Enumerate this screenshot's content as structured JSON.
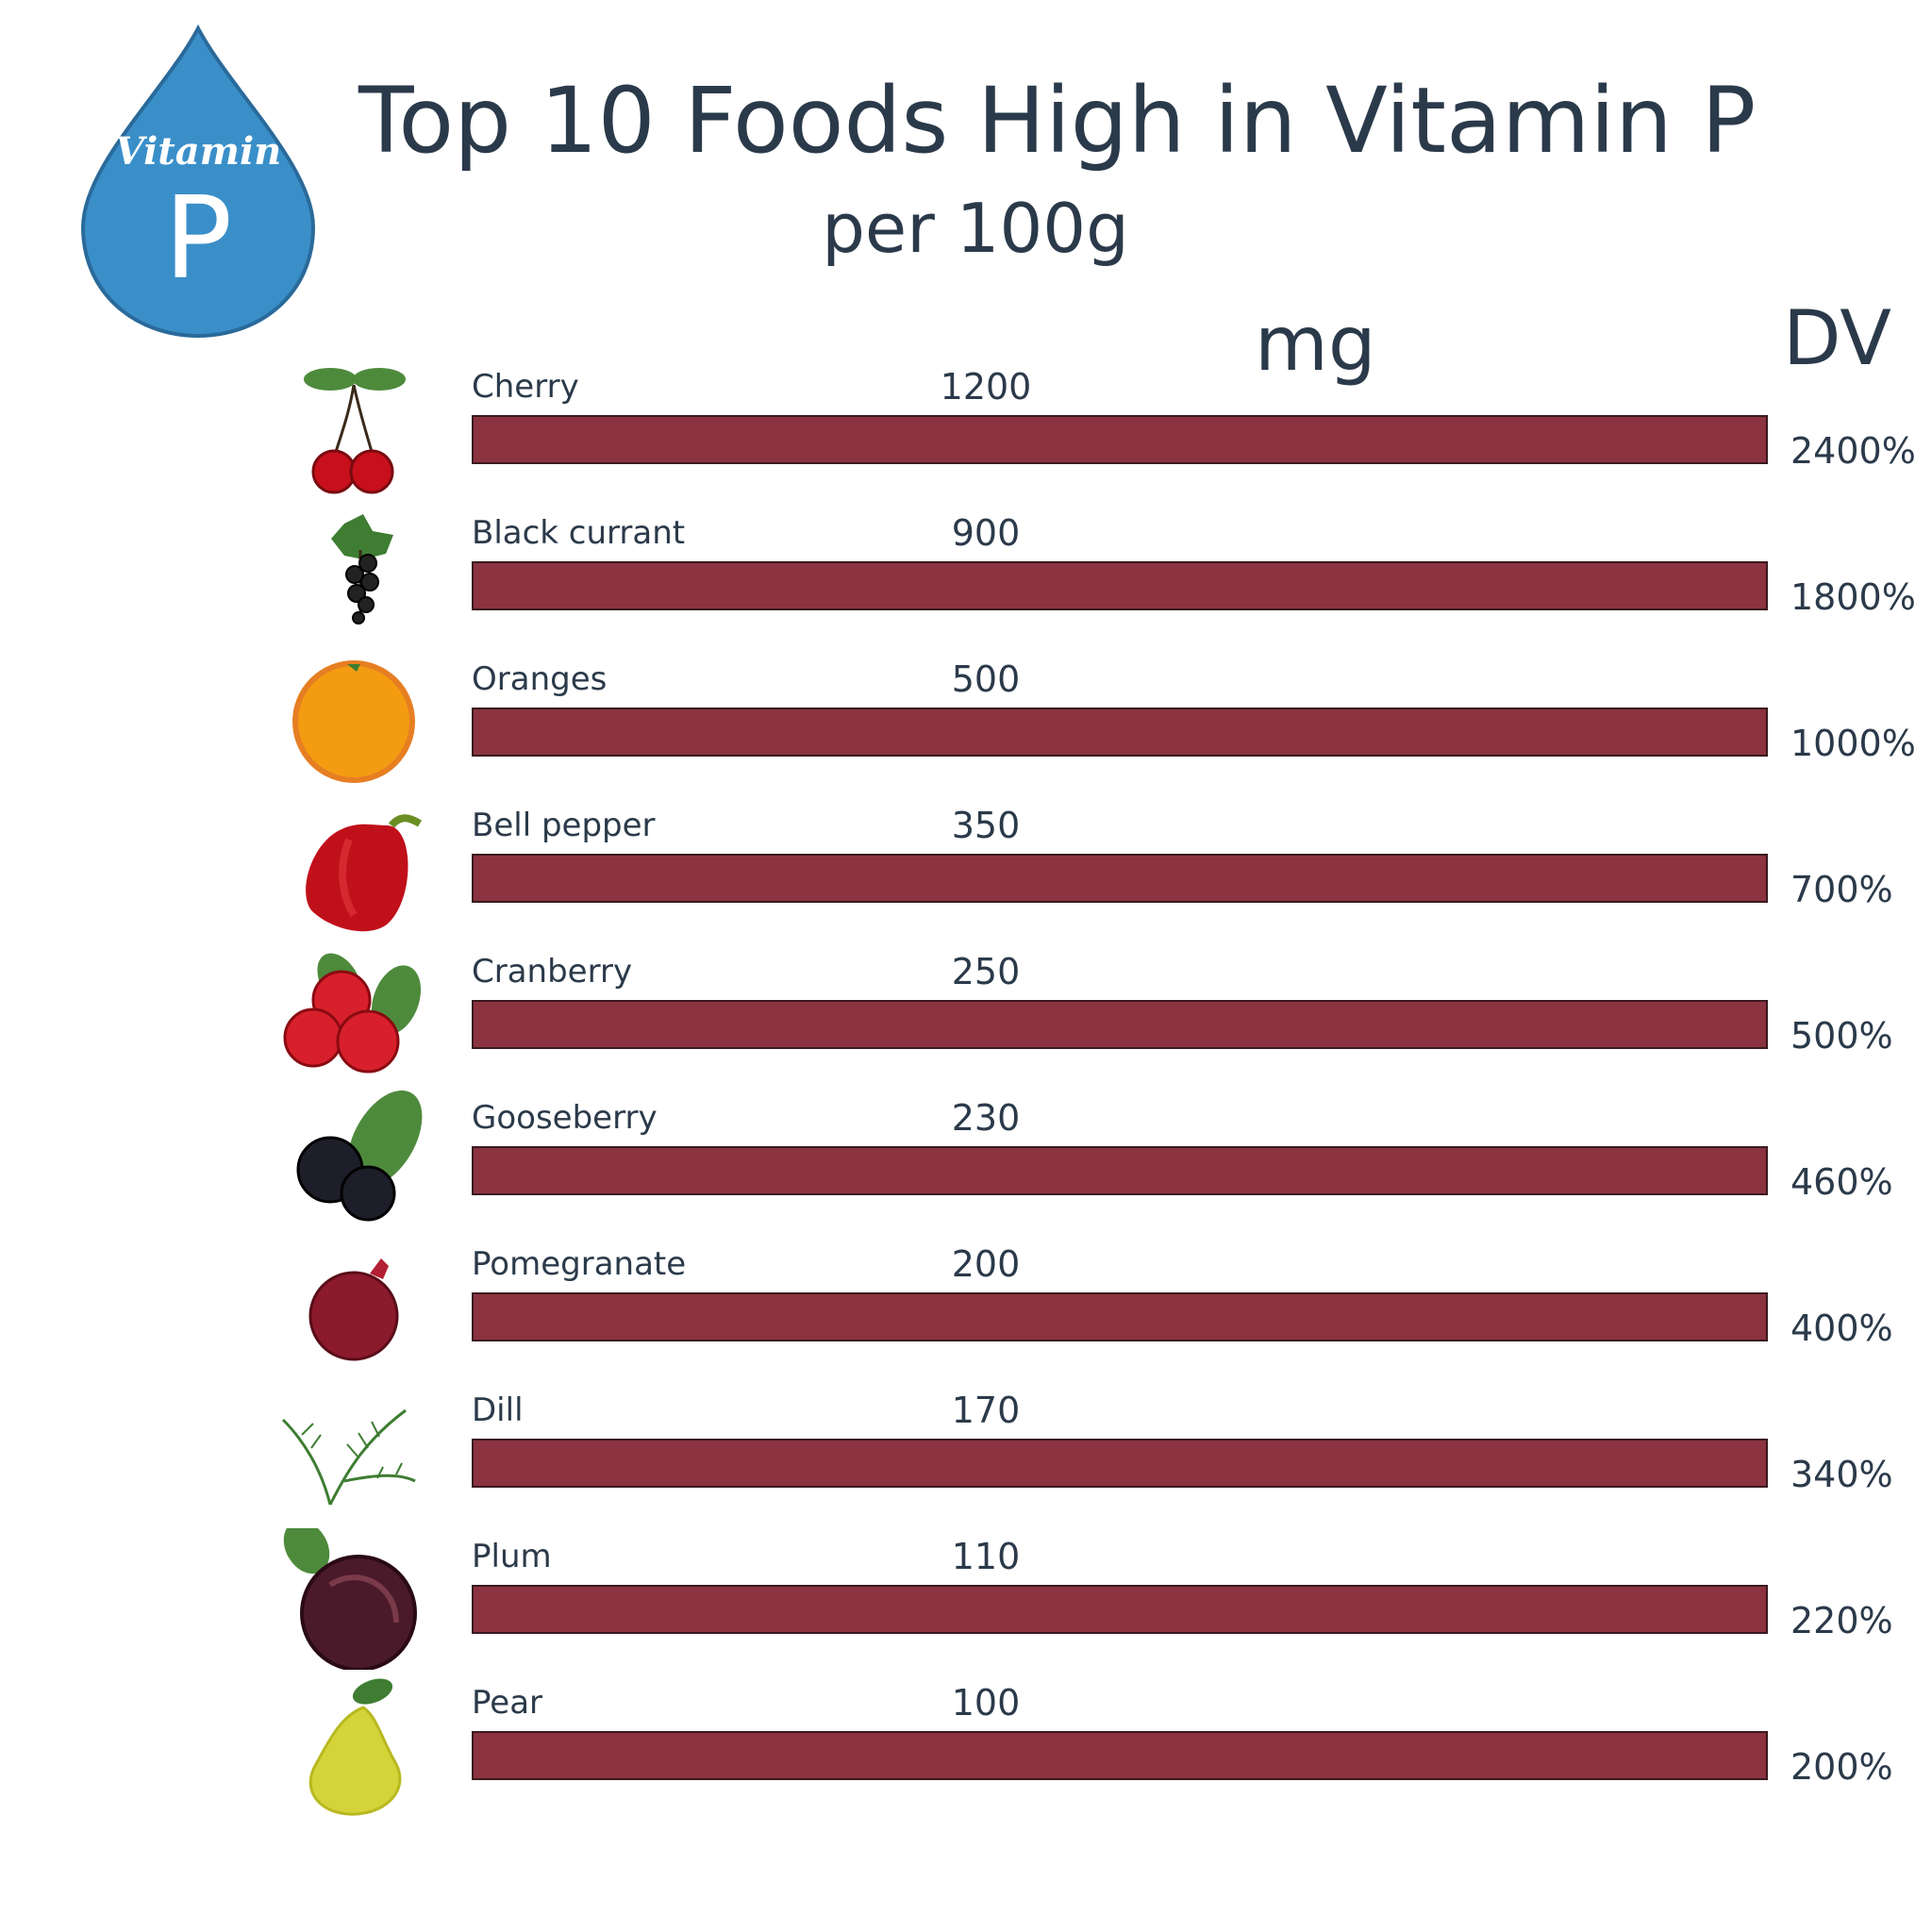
{
  "badge": {
    "word": "Vitamin",
    "letter": "P",
    "color": "#3a8fc9"
  },
  "chart_data": {
    "type": "bar",
    "orientation": "horizontal",
    "title": "Top 10 Foods High in Vitamin P",
    "subtitle": "per 100g",
    "value_unit": "mg",
    "secondary_unit": "DV",
    "bar_color": "#8b3340",
    "categories": [
      "Cherry",
      "Black currant",
      "Oranges",
      "Bell pepper",
      "Cranberry",
      "Gooseberry",
      "Pomegranate",
      "Dill",
      "Plum",
      "Pear"
    ],
    "values": [
      1200,
      900,
      500,
      350,
      250,
      230,
      200,
      170,
      110,
      100
    ],
    "dv_labels": [
      "2400%",
      "1800%",
      "1000%",
      "700%",
      "500%",
      "460%",
      "400%",
      "340%",
      "220%",
      "200%"
    ],
    "icons": [
      "cherry-icon",
      "black-currant-icon",
      "orange-icon",
      "bell-pepper-icon",
      "cranberry-icon",
      "gooseberry-icon",
      "pomegranate-icon",
      "dill-icon",
      "plum-icon",
      "pear-icon"
    ]
  }
}
